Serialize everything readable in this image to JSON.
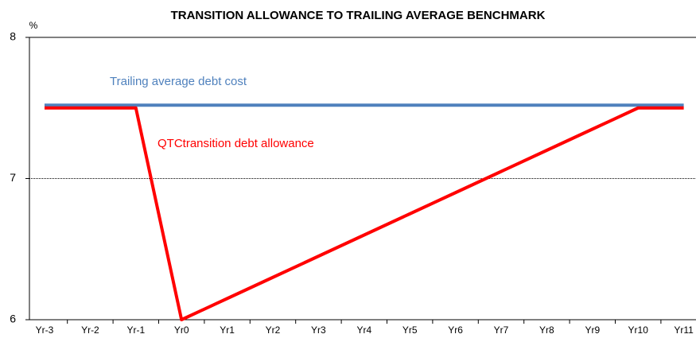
{
  "chart_data": {
    "type": "line",
    "title": "TRANSITION ALLOWANCE TO TRAILING AVERAGE BENCHMARK",
    "y_label": "%",
    "categories": [
      "Yr-3",
      "Yr-2",
      "Yr-1",
      "Yr0",
      "Yr1",
      "Yr2",
      "Yr3",
      "Yr4",
      "Yr5",
      "Yr6",
      "Yr7",
      "Yr8",
      "Yr9",
      "Yr10",
      "Yr11"
    ],
    "series": [
      {
        "name": "Trailing average debt cost",
        "color": "#4f81bd",
        "values": [
          7.52,
          7.52,
          7.52,
          7.52,
          7.52,
          7.52,
          7.52,
          7.52,
          7.52,
          7.52,
          7.52,
          7.52,
          7.52,
          7.52,
          7.52
        ]
      },
      {
        "name": "QTCtransition debt allowance",
        "color": "#ff0000",
        "values": [
          7.5,
          7.5,
          7.5,
          6,
          6.15,
          6.3,
          6.45,
          6.6,
          6.75,
          6.9,
          7.05,
          7.2,
          7.35,
          7.5,
          7.5
        ]
      }
    ],
    "ylim": [
      6,
      8
    ],
    "yticks": [
      6,
      7,
      8
    ],
    "grid": true
  }
}
